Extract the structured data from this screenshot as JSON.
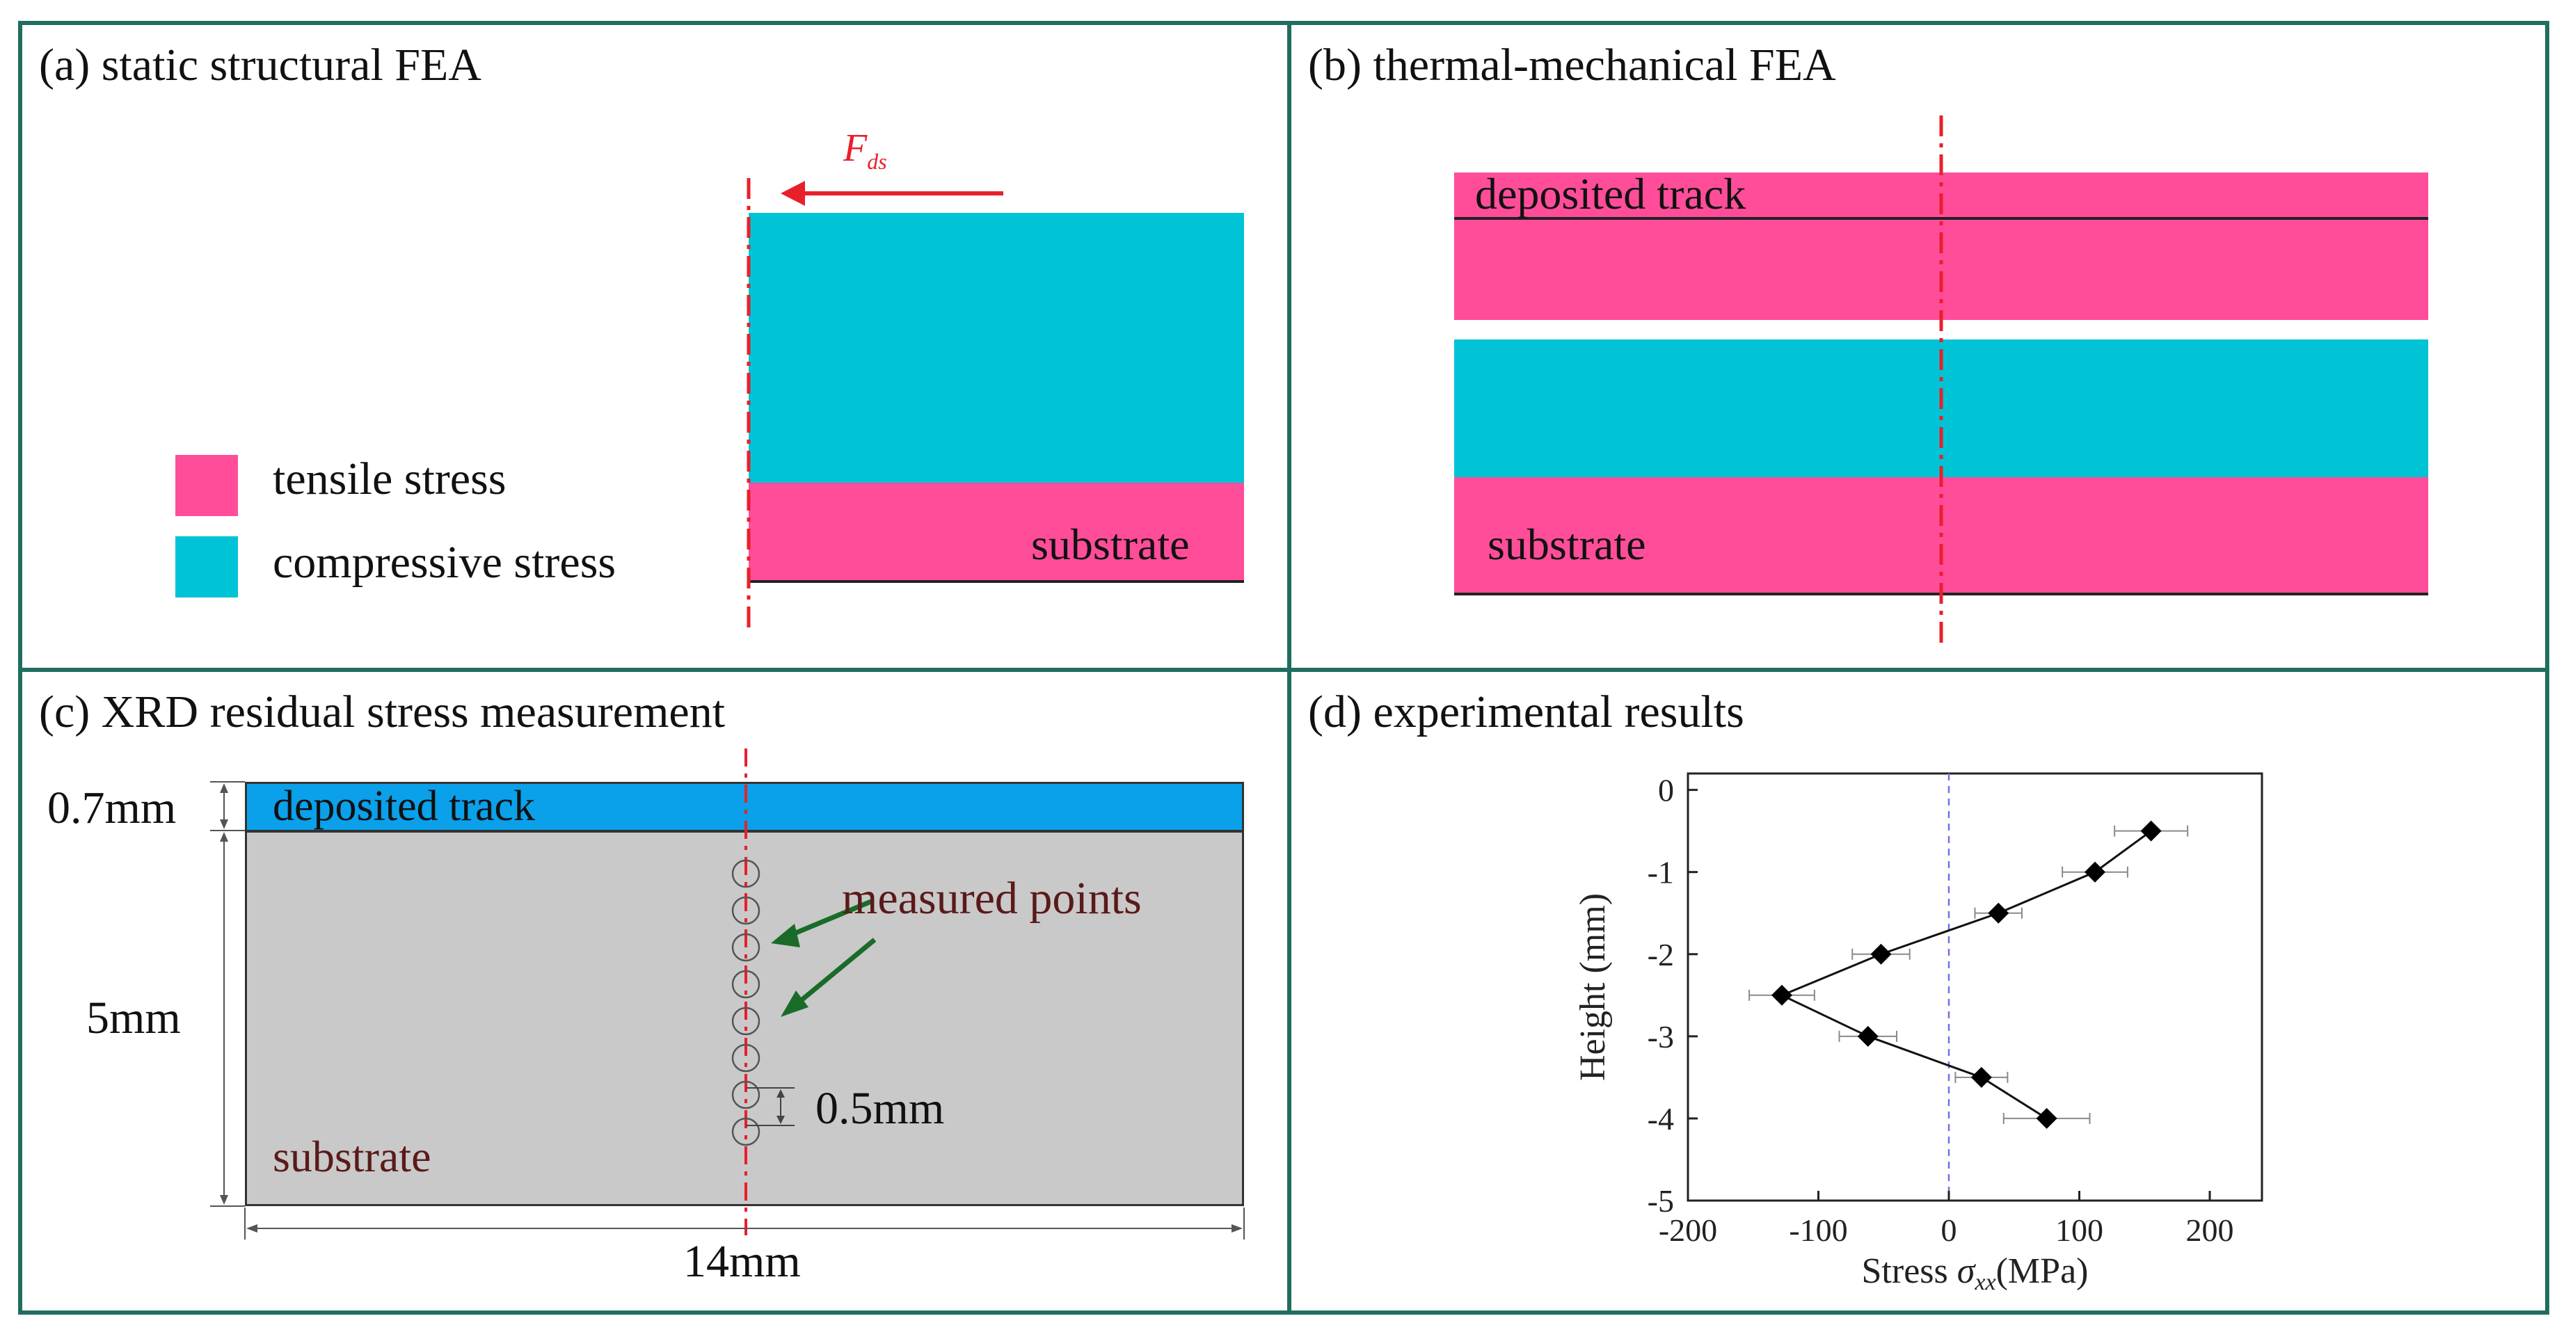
{
  "panels": {
    "a": {
      "title": "(a) static structural FEA",
      "force_label": "F",
      "force_subscript": "ds",
      "legend": {
        "tensile": "tensile stress",
        "compressive": "compressive stress"
      },
      "substrate_label": "substrate"
    },
    "b": {
      "title": "(b) thermal-mechanical FEA",
      "deposited_label": "deposited track",
      "substrate_label": "substrate"
    },
    "c": {
      "title": "(c) XRD residual stress measurement",
      "deposited_label": "deposited track",
      "substrate_label": "substrate",
      "measured_label": "measured points",
      "dim_track": "0.7mm",
      "dim_substrate": "5mm",
      "dim_width": "14mm",
      "dim_spacing": "0.5mm"
    },
    "d": {
      "title": "(d) experimental results"
    }
  },
  "colors": {
    "tensile": "#ff4d9a",
    "compressive": "#00c4d6",
    "frame": "#1f6e5f",
    "track_blue": "#0aa0ea",
    "substrate_gray": "#c9c9c9",
    "arrow_green": "#1a6b2a",
    "centerline": "#e8202a"
  },
  "chart_data": {
    "type": "scatter",
    "title": "",
    "xlabel": "Stress σxx(MPa)",
    "xlabel_prefix": "Stress ",
    "xlabel_symbol": "σ",
    "xlabel_sub": "xx",
    "xlabel_suffix": "(MPa)",
    "ylabel": "Height (mm)",
    "xlim": [
      -200,
      240
    ],
    "ylim": [
      -5,
      0.2
    ],
    "x_ticks": [
      -200,
      -100,
      0,
      100,
      200
    ],
    "y_ticks": [
      0,
      -1,
      -2,
      -3,
      -4,
      -5
    ],
    "reference_line_x": 0,
    "series": [
      {
        "name": "Stress",
        "connected": true,
        "points": [
          {
            "x": 155,
            "y": -0.5,
            "err": 28
          },
          {
            "x": 112,
            "y": -1.0,
            "err": 25
          },
          {
            "x": 38,
            "y": -1.5,
            "err": 18
          },
          {
            "x": -52,
            "y": -2.0,
            "err": 22
          },
          {
            "x": -128,
            "y": -2.5,
            "err": 25
          },
          {
            "x": -62,
            "y": -3.0,
            "err": 22
          },
          {
            "x": 25,
            "y": -3.5,
            "err": 20
          },
          {
            "x": 75,
            "y": -4.0,
            "err": 33
          }
        ]
      }
    ]
  }
}
